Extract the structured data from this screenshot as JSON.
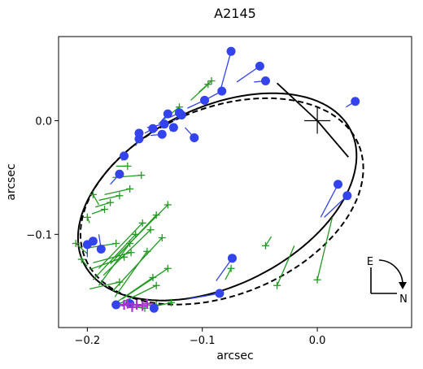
{
  "chart_data": {
    "type": "scatter",
    "title": "A2145",
    "xlabel": "arcsec",
    "ylabel": "arcsec",
    "xlim": [
      -0.225,
      0.082
    ],
    "ylim": [
      -0.182,
      0.074
    ],
    "xticks": [
      -0.2,
      -0.1,
      0.0
    ],
    "xtick_labels": [
      "−0.2",
      "−0.1",
      "0.0"
    ],
    "yticks": [
      0.0,
      -0.1
    ],
    "ytick_labels": [
      "0.0",
      "−0.1"
    ],
    "grid": false,
    "legend": "none",
    "center": [
      0.0,
      0.0
    ],
    "colors": {
      "blue": "#3344ee",
      "green": "#229922",
      "purple": "#aa33cc",
      "black": "#000000"
    },
    "ellipse_solid": {
      "cx": -0.087,
      "cy": -0.067,
      "a": 0.13,
      "b": 0.078,
      "angle_deg": 27
    },
    "ellipse_dashed": {
      "cx": -0.083,
      "cy": -0.071,
      "a": 0.129,
      "b": 0.082,
      "angle_deg": 23
    },
    "radial_lines": [
      {
        "from": [
          0.0,
          0.0
        ],
        "to": [
          -0.035,
          0.033
        ]
      },
      {
        "from": [
          0.0,
          0.0
        ],
        "to": [
          0.027,
          -0.032
        ]
      }
    ],
    "blue_points": [
      {
        "obs": [
          -0.075,
          0.061
        ],
        "model": [
          -0.085,
          0.024
        ]
      },
      {
        "obs": [
          -0.05,
          0.048
        ],
        "model": [
          -0.07,
          0.034
        ]
      },
      {
        "obs": [
          -0.045,
          0.035
        ],
        "model": [
          -0.055,
          0.034
        ]
      },
      {
        "obs": [
          0.033,
          0.017
        ],
        "model": [
          0.025,
          0.012
        ]
      },
      {
        "obs": [
          -0.083,
          0.026
        ],
        "model": [
          -0.098,
          0.018
        ]
      },
      {
        "obs": [
          -0.098,
          0.018
        ],
        "model": [
          -0.113,
          0.011
        ]
      },
      {
        "obs": [
          -0.12,
          0.007
        ],
        "model": [
          -0.128,
          0.003
        ]
      },
      {
        "obs": [
          -0.13,
          0.006
        ],
        "model": [
          -0.138,
          -0.003
        ]
      },
      {
        "obs": [
          -0.118,
          0.005
        ],
        "model": [
          -0.125,
          0.0
        ]
      },
      {
        "obs": [
          -0.133,
          -0.003
        ],
        "model": [
          -0.148,
          -0.006
        ]
      },
      {
        "obs": [
          -0.143,
          -0.007
        ],
        "model": [
          -0.15,
          -0.011
        ]
      },
      {
        "obs": [
          -0.155,
          -0.011
        ],
        "model": [
          -0.155,
          -0.016
        ]
      },
      {
        "obs": [
          -0.155,
          -0.016
        ],
        "model": [
          -0.158,
          -0.022
        ]
      },
      {
        "obs": [
          -0.135,
          -0.012
        ],
        "model": [
          -0.145,
          -0.013
        ]
      },
      {
        "obs": [
          -0.125,
          -0.006
        ],
        "model": [
          -0.128,
          -0.009
        ]
      },
      {
        "obs": [
          -0.107,
          -0.015
        ],
        "model": [
          -0.115,
          -0.006
        ]
      },
      {
        "obs": [
          -0.168,
          -0.031
        ],
        "model": [
          -0.17,
          -0.035
        ]
      },
      {
        "obs": [
          -0.172,
          -0.047
        ],
        "model": [
          -0.18,
          -0.056
        ]
      },
      {
        "obs": [
          0.018,
          -0.056
        ],
        "model": [
          0.003,
          -0.085
        ]
      },
      {
        "obs": [
          0.026,
          -0.066
        ],
        "model": [
          0.006,
          -0.085
        ]
      },
      {
        "obs": [
          -0.074,
          -0.121
        ],
        "model": [
          -0.088,
          -0.141
        ]
      },
      {
        "obs": [
          -0.085,
          -0.152
        ],
        "model": [
          -0.113,
          -0.157
        ]
      },
      {
        "obs": [
          -0.142,
          -0.165
        ],
        "model": [
          -0.145,
          -0.163
        ]
      },
      {
        "obs": [
          -0.163,
          -0.161
        ],
        "model": [
          -0.16,
          -0.165
        ]
      },
      {
        "obs": [
          -0.175,
          -0.162
        ],
        "model": [
          -0.168,
          -0.163
        ]
      },
      {
        "obs": [
          -0.188,
          -0.113
        ],
        "model": [
          -0.19,
          -0.1
        ]
      },
      {
        "obs": [
          -0.195,
          -0.106
        ],
        "model": [
          -0.197,
          -0.11
        ]
      },
      {
        "obs": [
          -0.2,
          -0.109
        ],
        "model": [
          -0.2,
          -0.12
        ]
      }
    ],
    "green_points": [
      {
        "obs": [
          -0.092,
          0.035
        ],
        "model": [
          -0.103,
          0.025
        ]
      },
      {
        "obs": [
          -0.095,
          0.032
        ],
        "model": [
          -0.11,
          0.018
        ]
      },
      {
        "obs": [
          -0.12,
          0.012
        ],
        "model": [
          -0.135,
          0.0
        ]
      },
      {
        "obs": [
          -0.153,
          -0.048
        ],
        "model": [
          -0.178,
          -0.05
        ]
      },
      {
        "obs": [
          -0.163,
          -0.06
        ],
        "model": [
          -0.185,
          -0.065
        ]
      },
      {
        "obs": [
          -0.172,
          -0.066
        ],
        "model": [
          -0.19,
          -0.07
        ]
      },
      {
        "obs": [
          -0.18,
          -0.072
        ],
        "model": [
          -0.193,
          -0.076
        ]
      },
      {
        "obs": [
          -0.185,
          -0.078
        ],
        "model": [
          -0.196,
          -0.082
        ]
      },
      {
        "obs": [
          -0.13,
          -0.074
        ],
        "model": [
          -0.175,
          -0.12
        ]
      },
      {
        "obs": [
          -0.14,
          -0.083
        ],
        "model": [
          -0.18,
          -0.126
        ]
      },
      {
        "obs": [
          -0.152,
          -0.09
        ],
        "model": [
          -0.19,
          -0.13
        ]
      },
      {
        "obs": [
          -0.145,
          -0.096
        ],
        "model": [
          -0.186,
          -0.136
        ]
      },
      {
        "obs": [
          -0.158,
          -0.1
        ],
        "model": [
          -0.195,
          -0.14
        ]
      },
      {
        "obs": [
          -0.163,
          -0.108
        ],
        "model": [
          -0.19,
          -0.145
        ]
      },
      {
        "obs": [
          -0.135,
          -0.103
        ],
        "model": [
          -0.178,
          -0.15
        ]
      },
      {
        "obs": [
          -0.148,
          -0.115
        ],
        "model": [
          -0.176,
          -0.155
        ]
      },
      {
        "obs": [
          -0.13,
          -0.13
        ],
        "model": [
          -0.17,
          -0.157
        ]
      },
      {
        "obs": [
          -0.143,
          -0.138
        ],
        "model": [
          -0.175,
          -0.16
        ]
      },
      {
        "obs": [
          -0.14,
          -0.145
        ],
        "model": [
          -0.172,
          -0.161
        ]
      },
      {
        "obs": [
          -0.162,
          -0.116
        ],
        "model": [
          -0.195,
          -0.125
        ]
      },
      {
        "obs": [
          -0.21,
          -0.108
        ],
        "model": [
          -0.2,
          -0.117
        ]
      },
      {
        "obs": [
          -0.168,
          -0.12
        ],
        "model": [
          -0.198,
          -0.131
        ]
      },
      {
        "obs": [
          -0.172,
          -0.142
        ],
        "model": [
          -0.198,
          -0.148
        ]
      },
      {
        "obs": [
          -0.205,
          -0.122
        ],
        "model": [
          -0.2,
          -0.128
        ]
      },
      {
        "obs": [
          -0.175,
          -0.108
        ],
        "model": [
          -0.2,
          -0.112
        ]
      },
      {
        "obs": [
          -0.045,
          -0.11
        ],
        "model": [
          -0.04,
          -0.102
        ]
      },
      {
        "obs": [
          -0.035,
          -0.145
        ],
        "model": [
          -0.02,
          -0.11
        ]
      },
      {
        "obs": [
          0.0,
          -0.14
        ],
        "model": [
          0.013,
          -0.085
        ]
      },
      {
        "obs": [
          -0.075,
          -0.13
        ],
        "model": [
          -0.08,
          -0.14
        ]
      },
      {
        "obs": [
          -0.127,
          -0.16
        ],
        "model": [
          -0.14,
          -0.163
        ]
      },
      {
        "obs": [
          -0.14,
          -0.162
        ],
        "model": [
          -0.152,
          -0.163
        ]
      },
      {
        "obs": [
          -0.15,
          -0.165
        ],
        "model": [
          -0.158,
          -0.164
        ]
      },
      {
        "obs": [
          -0.165,
          -0.04
        ],
        "model": [
          -0.175,
          -0.04
        ]
      },
      {
        "obs": [
          -0.2,
          -0.085
        ],
        "model": [
          -0.198,
          -0.09
        ]
      },
      {
        "obs": [
          -0.195,
          -0.065
        ],
        "model": [
          -0.19,
          -0.074
        ]
      }
    ],
    "purple_points": [
      [
        -0.165,
        -0.161
      ],
      [
        -0.161,
        -0.164
      ],
      [
        -0.157,
        -0.162
      ],
      [
        -0.152,
        -0.163
      ],
      [
        -0.148,
        -0.161
      ],
      [
        -0.168,
        -0.162
      ]
    ],
    "compass": {
      "e_label": "E",
      "n_label": "N"
    }
  }
}
